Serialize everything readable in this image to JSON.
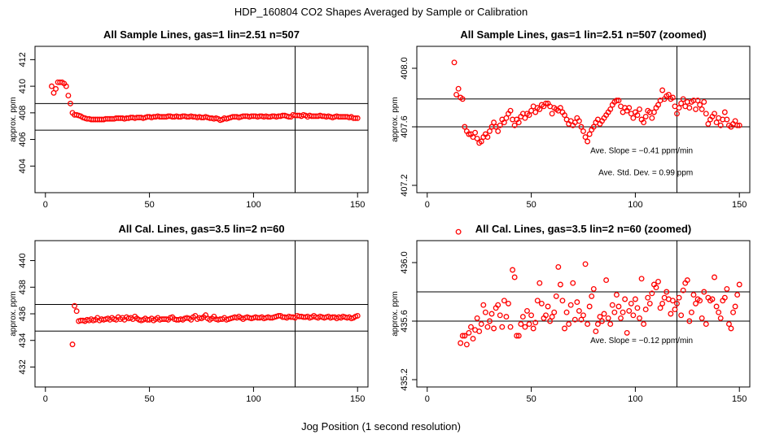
{
  "figure": {
    "title": "HDP_160804  CO2 Shapes Averaged by Sample or Calibration",
    "xlabel": "Jog Position (1 second resolution)",
    "marker_color": "#ff0000"
  },
  "chart_data": [
    {
      "type": "scatter",
      "title": "All Sample Lines, gas=1 lin=2.51 n=507",
      "ylabel": "approx. ppm",
      "xlim": [
        -5,
        155
      ],
      "ylim": [
        402.0,
        413.0
      ],
      "xticks": [
        0,
        50,
        100,
        150
      ],
      "yticks": [
        404,
        406,
        408,
        410,
        412
      ],
      "vline": 120,
      "hlines": [
        406.7,
        408.7
      ],
      "annotations": [],
      "x": [
        3,
        4,
        5,
        6,
        7,
        8,
        9,
        10,
        11,
        12,
        13,
        14,
        15,
        16,
        17,
        18,
        19,
        20,
        21,
        22,
        23,
        24,
        25,
        26,
        27,
        28,
        29,
        30,
        31,
        32,
        33,
        34,
        35,
        36,
        37,
        38,
        39,
        40,
        41,
        42,
        43,
        44,
        45,
        46,
        47,
        48,
        49,
        50,
        51,
        52,
        53,
        54,
        55,
        56,
        57,
        58,
        59,
        60,
        61,
        62,
        63,
        64,
        65,
        66,
        67,
        68,
        69,
        70,
        71,
        72,
        73,
        74,
        75,
        76,
        77,
        78,
        79,
        80,
        81,
        82,
        83,
        84,
        85,
        86,
        87,
        88,
        89,
        90,
        91,
        92,
        93,
        94,
        95,
        96,
        97,
        98,
        99,
        100,
        101,
        102,
        103,
        104,
        105,
        106,
        107,
        108,
        109,
        110,
        111,
        112,
        113,
        114,
        115,
        116,
        117,
        118,
        119,
        120,
        121,
        122,
        123,
        124,
        125,
        126,
        127,
        128,
        129,
        130,
        131,
        132,
        133,
        134,
        135,
        136,
        137,
        138,
        139,
        140,
        141,
        142,
        143,
        144,
        145,
        146,
        147,
        148,
        149,
        150
      ],
      "values": [
        410.0,
        409.5,
        409.8,
        410.3,
        410.3,
        410.3,
        410.2,
        410.0,
        409.3,
        408.7,
        408.0,
        407.85,
        407.85,
        407.8,
        407.75,
        407.65,
        407.6,
        407.55,
        407.55,
        407.5,
        407.5,
        407.5,
        407.5,
        407.5,
        407.5,
        407.5,
        407.55,
        407.55,
        407.55,
        407.55,
        407.55,
        407.6,
        407.6,
        407.6,
        407.6,
        407.55,
        407.6,
        407.6,
        407.65,
        407.65,
        407.6,
        407.65,
        407.65,
        407.65,
        407.6,
        407.65,
        407.7,
        407.7,
        407.65,
        407.7,
        407.7,
        407.75,
        407.7,
        407.7,
        407.7,
        407.7,
        407.75,
        407.75,
        407.7,
        407.7,
        407.75,
        407.7,
        407.7,
        407.75,
        407.75,
        407.7,
        407.7,
        407.75,
        407.7,
        407.7,
        407.65,
        407.7,
        407.65,
        407.65,
        407.7,
        407.65,
        407.6,
        407.6,
        407.55,
        407.6,
        407.55,
        407.45,
        407.5,
        407.6,
        407.55,
        407.6,
        407.65,
        407.7,
        407.7,
        407.7,
        407.65,
        407.7,
        407.75,
        407.75,
        407.75,
        407.7,
        407.75,
        407.75,
        407.75,
        407.7,
        407.75,
        407.75,
        407.7,
        407.75,
        407.7,
        407.7,
        407.75,
        407.75,
        407.7,
        407.75,
        407.75,
        407.8,
        407.8,
        407.75,
        407.7,
        407.7,
        407.85,
        407.8,
        407.8,
        407.8,
        407.75,
        407.85,
        407.8,
        407.7,
        407.8,
        407.75,
        407.75,
        407.75,
        407.75,
        407.8,
        407.75,
        407.75,
        407.7,
        407.75,
        407.7,
        407.65,
        407.7,
        407.75,
        407.7,
        407.7,
        407.7,
        407.7,
        407.7,
        407.65,
        407.7,
        407.6,
        407.6,
        407.6
      ]
    },
    {
      "type": "scatter",
      "title": "All Sample Lines, gas=1 lin=2.51 n=507 (zoomed)",
      "ylabel": "approx. ppm",
      "xlim": [
        -5,
        155
      ],
      "ylim": [
        407.15,
        408.15
      ],
      "xticks": [
        0,
        50,
        100,
        150
      ],
      "yticks": [
        407.2,
        407.6,
        408.0
      ],
      "vline": 120,
      "hlines": [
        407.6,
        407.79
      ],
      "annotations": [
        {
          "text": "Ave. Slope =  −0.41  ppm/min",
          "x": 103,
          "y": 407.42
        },
        {
          "text": "Ave. Std. Dev. =  0.99  ppm",
          "x": 105,
          "y": 407.27
        }
      ],
      "x": [
        13,
        14,
        15,
        16,
        17,
        18,
        19,
        20,
        21,
        22,
        23,
        24,
        25,
        26,
        27,
        28,
        29,
        30,
        31,
        32,
        33,
        34,
        35,
        36,
        37,
        38,
        39,
        40,
        41,
        42,
        43,
        44,
        45,
        46,
        47,
        48,
        49,
        50,
        51,
        52,
        53,
        54,
        55,
        56,
        57,
        58,
        59,
        60,
        61,
        62,
        63,
        64,
        65,
        66,
        67,
        68,
        69,
        70,
        71,
        72,
        73,
        74,
        75,
        76,
        77,
        78,
        79,
        80,
        81,
        82,
        83,
        84,
        85,
        86,
        87,
        88,
        89,
        90,
        91,
        92,
        93,
        94,
        95,
        96,
        97,
        98,
        99,
        100,
        101,
        102,
        103,
        104,
        105,
        106,
        107,
        108,
        109,
        110,
        111,
        112,
        113,
        114,
        115,
        116,
        117,
        118,
        119,
        120,
        121,
        122,
        123,
        124,
        125,
        126,
        127,
        128,
        129,
        130,
        131,
        132,
        133,
        134,
        135,
        136,
        137,
        138,
        139,
        140,
        141,
        142,
        143,
        144,
        145,
        146,
        147,
        148,
        149,
        150
      ],
      "values": [
        408.04,
        407.82,
        407.86,
        407.8,
        407.79,
        407.6,
        407.57,
        407.55,
        407.55,
        407.53,
        407.56,
        407.52,
        407.49,
        407.5,
        407.53,
        407.55,
        407.53,
        407.57,
        407.6,
        407.63,
        407.6,
        407.57,
        407.61,
        407.65,
        407.63,
        407.66,
        407.69,
        407.71,
        407.65,
        407.61,
        407.65,
        407.63,
        407.67,
        407.69,
        407.66,
        407.69,
        407.68,
        407.71,
        407.74,
        407.7,
        407.73,
        407.72,
        407.75,
        407.74,
        407.76,
        407.76,
        407.74,
        407.69,
        407.73,
        407.72,
        407.71,
        407.73,
        407.7,
        407.68,
        407.65,
        407.62,
        407.64,
        407.61,
        407.63,
        407.66,
        407.64,
        407.6,
        407.57,
        407.53,
        407.5,
        407.55,
        407.58,
        407.6,
        407.63,
        407.65,
        407.62,
        407.64,
        407.66,
        407.68,
        407.7,
        407.72,
        407.75,
        407.77,
        407.78,
        407.78,
        407.74,
        407.7,
        407.73,
        407.71,
        407.73,
        407.69,
        407.66,
        407.7,
        407.68,
        407.72,
        407.65,
        407.63,
        407.67,
        407.71,
        407.7,
        407.66,
        407.7,
        407.73,
        407.75,
        407.78,
        407.85,
        407.79,
        407.81,
        407.82,
        407.79,
        407.8,
        407.74,
        407.69,
        407.73,
        407.76,
        407.79,
        407.74,
        407.77,
        407.73,
        407.77,
        407.78,
        407.72,
        407.78,
        407.75,
        407.72,
        407.77,
        407.69,
        407.62,
        407.65,
        407.67,
        407.69,
        407.63,
        407.66,
        407.61,
        407.65,
        407.7,
        407.65,
        407.61,
        407.6,
        407.62,
        407.64,
        407.61,
        407.61
      ]
    },
    {
      "type": "scatter",
      "title": "All Cal. Lines, gas=3.5 lin=2 n=60",
      "ylabel": "approx. ppm",
      "xlim": [
        -5,
        155
      ],
      "ylim": [
        430.5,
        441.5
      ],
      "xticks": [
        0,
        50,
        100,
        150
      ],
      "yticks": [
        432,
        434,
        436,
        438,
        440
      ],
      "vline": 120,
      "hlines": [
        434.7,
        436.7
      ],
      "annotations": [],
      "x": [
        13,
        14,
        15,
        16,
        17,
        18,
        19,
        20,
        21,
        22,
        23,
        24,
        25,
        26,
        27,
        28,
        29,
        30,
        31,
        32,
        33,
        34,
        35,
        36,
        37,
        38,
        39,
        40,
        41,
        42,
        43,
        44,
        45,
        46,
        47,
        48,
        49,
        50,
        51,
        52,
        53,
        54,
        55,
        56,
        57,
        58,
        59,
        60,
        61,
        62,
        63,
        64,
        65,
        66,
        67,
        68,
        69,
        70,
        71,
        72,
        73,
        74,
        75,
        76,
        77,
        78,
        79,
        80,
        81,
        82,
        83,
        84,
        85,
        86,
        87,
        88,
        89,
        90,
        91,
        92,
        93,
        94,
        95,
        96,
        97,
        98,
        99,
        100,
        101,
        102,
        103,
        104,
        105,
        106,
        107,
        108,
        109,
        110,
        111,
        112,
        113,
        114,
        115,
        116,
        117,
        118,
        119,
        120,
        121,
        122,
        123,
        124,
        125,
        126,
        127,
        128,
        129,
        130,
        131,
        132,
        133,
        134,
        135,
        136,
        137,
        138,
        139,
        140,
        141,
        142,
        143,
        144,
        145,
        146,
        147,
        148,
        149,
        150
      ],
      "values": [
        433.7,
        436.6,
        436.2,
        435.45,
        435.5,
        435.5,
        435.45,
        435.55,
        435.5,
        435.6,
        435.5,
        435.55,
        435.7,
        435.5,
        435.6,
        435.55,
        435.6,
        435.65,
        435.55,
        435.7,
        435.6,
        435.55,
        435.75,
        435.6,
        435.7,
        435.55,
        435.75,
        435.65,
        435.7,
        435.6,
        435.8,
        435.65,
        435.55,
        435.5,
        435.55,
        435.65,
        435.55,
        435.55,
        435.65,
        435.5,
        435.6,
        435.7,
        435.55,
        435.6,
        435.6,
        435.6,
        435.55,
        435.7,
        435.75,
        435.6,
        435.55,
        435.55,
        435.6,
        435.55,
        435.65,
        435.7,
        435.65,
        435.55,
        435.75,
        435.85,
        435.6,
        435.7,
        435.65,
        435.75,
        435.9,
        435.65,
        435.55,
        435.65,
        435.8,
        435.6,
        435.55,
        435.6,
        435.6,
        435.7,
        435.55,
        435.6,
        435.65,
        435.7,
        435.75,
        435.7,
        435.8,
        435.7,
        435.6,
        435.7,
        435.75,
        435.7,
        435.65,
        435.7,
        435.75,
        435.7,
        435.7,
        435.75,
        435.65,
        435.7,
        435.75,
        435.7,
        435.7,
        435.75,
        435.8,
        435.85,
        435.85,
        435.75,
        435.75,
        435.7,
        435.8,
        435.75,
        435.75,
        435.7,
        435.85,
        435.8,
        435.8,
        435.75,
        435.75,
        435.8,
        435.7,
        435.75,
        435.85,
        435.75,
        435.7,
        435.8,
        435.75,
        435.7,
        435.75,
        435.8,
        435.7,
        435.75,
        435.75,
        435.65,
        435.75,
        435.7,
        435.8,
        435.75,
        435.7,
        435.75,
        435.65,
        435.7,
        435.8,
        435.85
      ]
    },
    {
      "type": "scatter",
      "title": "All Cal. Lines, gas=3.5 lin=2 n=60 (zoomed)",
      "ylabel": "approx. ppm",
      "xlim": [
        -5,
        155
      ],
      "ylim": [
        435.15,
        436.15
      ],
      "xticks": [
        0,
        50,
        100,
        150
      ],
      "yticks": [
        435.2,
        435.6,
        436.0
      ],
      "vline": 120,
      "hlines": [
        435.6,
        435.8
      ],
      "annotations": [
        {
          "text": "Ave. Slope =  −0.12  ppm/min",
          "x": 103,
          "y": 435.45
        }
      ],
      "x": [
        15,
        16,
        17,
        18,
        19,
        20,
        21,
        22,
        23,
        24,
        25,
        26,
        27,
        28,
        29,
        30,
        31,
        32,
        33,
        34,
        35,
        36,
        37,
        38,
        39,
        40,
        41,
        42,
        43,
        44,
        45,
        46,
        47,
        48,
        49,
        50,
        51,
        52,
        53,
        54,
        55,
        56,
        57,
        58,
        59,
        60,
        61,
        62,
        63,
        64,
        65,
        66,
        67,
        68,
        69,
        70,
        71,
        72,
        73,
        74,
        75,
        76,
        77,
        78,
        79,
        80,
        81,
        82,
        83,
        84,
        85,
        86,
        87,
        88,
        89,
        90,
        91,
        92,
        93,
        94,
        95,
        96,
        97,
        98,
        99,
        100,
        101,
        102,
        103,
        104,
        105,
        106,
        107,
        108,
        109,
        110,
        111,
        112,
        113,
        114,
        115,
        116,
        117,
        118,
        119,
        120,
        121,
        122,
        123,
        124,
        125,
        126,
        127,
        128,
        129,
        130,
        131,
        132,
        133,
        134,
        135,
        136,
        137,
        138,
        139,
        140,
        141,
        142,
        143,
        144,
        145,
        146,
        147,
        148,
        149,
        150
      ],
      "values": [
        436.21,
        435.45,
        435.5,
        435.5,
        435.44,
        435.52,
        435.56,
        435.48,
        435.54,
        435.62,
        435.53,
        435.58,
        435.71,
        435.66,
        435.56,
        435.6,
        435.65,
        435.55,
        435.69,
        435.71,
        435.64,
        435.56,
        435.74,
        435.63,
        435.72,
        435.56,
        435.95,
        435.9,
        435.5,
        435.5,
        435.58,
        435.63,
        435.56,
        435.67,
        435.58,
        435.64,
        435.55,
        435.59,
        435.74,
        435.86,
        435.72,
        435.62,
        435.64,
        435.7,
        435.6,
        435.63,
        435.66,
        435.77,
        435.97,
        435.85,
        435.74,
        435.55,
        435.66,
        435.58,
        435.71,
        435.86,
        435.61,
        435.73,
        435.67,
        435.61,
        435.64,
        435.99,
        435.58,
        435.7,
        435.77,
        435.82,
        435.53,
        435.58,
        435.63,
        435.6,
        435.65,
        435.88,
        435.62,
        435.58,
        435.71,
        435.66,
        435.78,
        435.7,
        435.62,
        435.66,
        435.75,
        435.52,
        435.67,
        435.72,
        435.64,
        435.75,
        435.69,
        435.62,
        435.89,
        435.58,
        435.68,
        435.76,
        435.72,
        435.79,
        435.85,
        435.83,
        435.87,
        435.69,
        435.72,
        435.76,
        435.8,
        435.75,
        435.65,
        435.74,
        435.68,
        435.72,
        435.76,
        435.64,
        435.81,
        435.86,
        435.88,
        435.6,
        435.66,
        435.78,
        435.72,
        435.75,
        435.74,
        435.62,
        435.8,
        435.58,
        435.76,
        435.74,
        435.75,
        435.9,
        435.7,
        435.66,
        435.62,
        435.74,
        435.76,
        435.82,
        435.58,
        435.55,
        435.66,
        435.7,
        435.78,
        435.85
      ]
    }
  ]
}
